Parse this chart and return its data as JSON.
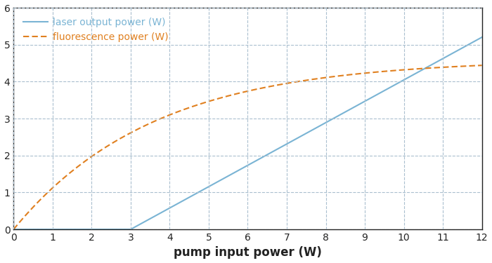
{
  "xlabel": "pump input power (W)",
  "xlim": [
    0,
    12
  ],
  "ylim": [
    0,
    6
  ],
  "xticks": [
    0,
    1,
    2,
    3,
    4,
    5,
    6,
    7,
    8,
    9,
    10,
    11,
    12
  ],
  "yticks": [
    0,
    1,
    2,
    3,
    4,
    5,
    6
  ],
  "laser_color": "#7ab4d4",
  "fluor_color": "#e08020",
  "laser_label": "laser output power (W)",
  "fluor_label": "fluorescence power (W)",
  "threshold": 3.0,
  "laser_slope": 0.578,
  "fluor_P_sat": 4.6,
  "fluor_rate": 0.28,
  "background_color": "#ffffff",
  "grid_color": "#aabfcf",
  "figsize": [
    7.0,
    3.75
  ],
  "dpi": 100
}
